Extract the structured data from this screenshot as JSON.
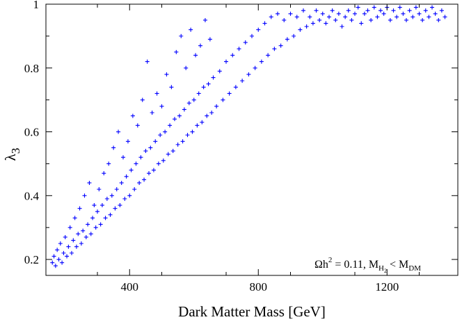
{
  "chart_data": {
    "type": "scatter",
    "xlabel": "Dark Matter Mass [GeV]",
    "ylabel": {
      "base": "λ",
      "sub": "3"
    },
    "xlim": [
      140,
      1420
    ],
    "ylim": [
      0.15,
      1.0
    ],
    "xticks": [
      400,
      800,
      1200
    ],
    "yticks": [
      0.2,
      0.4,
      0.6,
      0.8,
      1
    ],
    "xtick_labels": [
      "400",
      "800",
      "1200"
    ],
    "ytick_labels": [
      "0.2",
      "0.4",
      "0.6",
      "0.8",
      "1"
    ],
    "grid": false,
    "marker": "+",
    "marker_color": "#0000ff",
    "annotation": {
      "omega": "Ω",
      "h": "h",
      "sq": "2",
      "eq": " = 0.11, M",
      "h_sub": "H",
      "h_subsub": "2",
      "lt": " < M",
      "dm_sub": "DM"
    },
    "series": [
      {
        "points": [
          [
            160,
            0.19
          ],
          [
            165,
            0.21
          ],
          [
            170,
            0.18
          ],
          [
            175,
            0.23
          ],
          [
            180,
            0.2
          ],
          [
            185,
            0.25
          ],
          [
            190,
            0.19
          ],
          [
            195,
            0.22
          ],
          [
            200,
            0.27
          ],
          [
            205,
            0.21
          ],
          [
            210,
            0.24
          ],
          [
            215,
            0.3
          ],
          [
            220,
            0.22
          ],
          [
            225,
            0.26
          ],
          [
            230,
            0.33
          ],
          [
            235,
            0.24
          ],
          [
            240,
            0.28
          ],
          [
            245,
            0.36
          ],
          [
            250,
            0.25
          ],
          [
            255,
            0.29
          ],
          [
            260,
            0.4
          ],
          [
            265,
            0.27
          ],
          [
            270,
            0.31
          ],
          [
            275,
            0.44
          ],
          [
            280,
            0.28
          ],
          [
            285,
            0.33
          ],
          [
            290,
            0.37
          ],
          [
            295,
            0.3
          ],
          [
            300,
            0.35
          ],
          [
            305,
            0.42
          ],
          [
            310,
            0.31
          ],
          [
            315,
            0.37
          ],
          [
            320,
            0.47
          ],
          [
            325,
            0.33
          ],
          [
            330,
            0.39
          ],
          [
            335,
            0.5
          ],
          [
            340,
            0.34
          ],
          [
            345,
            0.4
          ],
          [
            350,
            0.55
          ],
          [
            355,
            0.36
          ],
          [
            360,
            0.42
          ],
          [
            365,
            0.6
          ],
          [
            370,
            0.37
          ],
          [
            375,
            0.44
          ],
          [
            380,
            0.52
          ],
          [
            385,
            0.39
          ],
          [
            390,
            0.46
          ],
          [
            395,
            0.57
          ],
          [
            400,
            0.4
          ],
          [
            405,
            0.48
          ],
          [
            410,
            0.65
          ],
          [
            415,
            0.42
          ],
          [
            420,
            0.5
          ],
          [
            425,
            0.62
          ],
          [
            430,
            0.44
          ],
          [
            435,
            0.52
          ],
          [
            440,
            0.7
          ],
          [
            445,
            0.45
          ],
          [
            450,
            0.54
          ],
          [
            455,
            0.82
          ],
          [
            460,
            0.47
          ],
          [
            465,
            0.55
          ],
          [
            470,
            0.66
          ],
          [
            475,
            0.48
          ],
          [
            480,
            0.57
          ],
          [
            485,
            0.72
          ],
          [
            490,
            0.5
          ],
          [
            495,
            0.59
          ],
          [
            500,
            0.68
          ],
          [
            505,
            0.51
          ],
          [
            510,
            0.6
          ],
          [
            515,
            0.78
          ],
          [
            520,
            0.53
          ],
          [
            525,
            0.62
          ],
          [
            530,
            0.74
          ],
          [
            535,
            0.54
          ],
          [
            540,
            0.64
          ],
          [
            545,
            0.85
          ],
          [
            550,
            0.56
          ],
          [
            555,
            0.65
          ],
          [
            560,
            0.9
          ],
          [
            565,
            0.57
          ],
          [
            570,
            0.67
          ],
          [
            575,
            0.8
          ],
          [
            580,
            0.59
          ],
          [
            585,
            0.69
          ],
          [
            590,
            0.92
          ],
          [
            595,
            0.6
          ],
          [
            600,
            0.7
          ],
          [
            605,
            0.84
          ],
          [
            610,
            0.62
          ],
          [
            615,
            0.72
          ],
          [
            620,
            0.87
          ],
          [
            625,
            0.63
          ],
          [
            630,
            0.74
          ],
          [
            635,
            0.95
          ],
          [
            640,
            0.65
          ],
          [
            645,
            0.75
          ],
          [
            650,
            0.89
          ],
          [
            655,
            0.66
          ],
          [
            660,
            0.77
          ],
          [
            670,
            0.68
          ],
          [
            680,
            0.79
          ],
          [
            690,
            0.7
          ],
          [
            700,
            0.82
          ],
          [
            710,
            0.72
          ],
          [
            720,
            0.84
          ],
          [
            730,
            0.74
          ],
          [
            740,
            0.86
          ],
          [
            750,
            0.76
          ],
          [
            760,
            0.88
          ],
          [
            770,
            0.78
          ],
          [
            780,
            0.9
          ],
          [
            790,
            0.8
          ],
          [
            800,
            0.92
          ],
          [
            810,
            0.82
          ],
          [
            820,
            0.94
          ],
          [
            830,
            0.84
          ],
          [
            840,
            0.96
          ],
          [
            850,
            0.86
          ],
          [
            860,
            0.97
          ],
          [
            870,
            0.87
          ],
          [
            880,
            0.95
          ],
          [
            890,
            0.89
          ],
          [
            900,
            0.97
          ],
          [
            910,
            0.9
          ],
          [
            920,
            0.96
          ],
          [
            930,
            0.92
          ],
          [
            940,
            0.98
          ],
          [
            950,
            0.93
          ],
          [
            960,
            0.96
          ],
          [
            970,
            0.94
          ],
          [
            980,
            0.98
          ],
          [
            990,
            0.95
          ],
          [
            1000,
            0.97
          ],
          [
            1010,
            0.94
          ],
          [
            1020,
            0.96
          ],
          [
            1030,
            0.98
          ],
          [
            1040,
            0.95
          ],
          [
            1050,
            0.97
          ],
          [
            1060,
            0.93
          ],
          [
            1070,
            0.96
          ],
          [
            1080,
            0.98
          ],
          [
            1090,
            0.95
          ],
          [
            1100,
            0.97
          ],
          [
            1110,
            0.99
          ],
          [
            1120,
            0.94
          ],
          [
            1130,
            0.97
          ],
          [
            1140,
            0.98
          ],
          [
            1150,
            0.95
          ],
          [
            1160,
            0.99
          ],
          [
            1170,
            0.96
          ],
          [
            1180,
            0.98
          ],
          [
            1190,
            0.97
          ],
          [
            1200,
            0.99
          ],
          [
            1210,
            0.95
          ],
          [
            1220,
            0.98
          ],
          [
            1230,
            0.96
          ],
          [
            1240,
            0.99
          ],
          [
            1250,
            0.97
          ],
          [
            1260,
            0.95
          ],
          [
            1270,
            0.98
          ],
          [
            1280,
            0.96
          ],
          [
            1290,
            0.99
          ],
          [
            1300,
            0.97
          ],
          [
            1310,
            0.95
          ],
          [
            1320,
            0.98
          ],
          [
            1330,
            0.96
          ],
          [
            1340,
            0.99
          ],
          [
            1350,
            0.97
          ],
          [
            1360,
            0.95
          ],
          [
            1370,
            0.98
          ],
          [
            1380,
            0.96
          ]
        ]
      }
    ]
  }
}
